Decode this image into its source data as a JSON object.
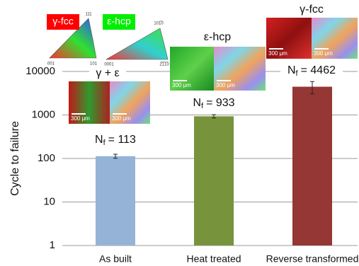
{
  "chart_data": {
    "type": "bar",
    "y_label": "Cycle to failure",
    "categories": [
      "As built",
      "Heat treated",
      "Reverse transformed"
    ],
    "values": [
      113,
      933,
      4462
    ],
    "errors": [
      12,
      80,
      1400
    ],
    "colors": [
      "#95b3d7",
      "#77933c",
      "#953735"
    ],
    "value_label_symbol": "N",
    "value_label_subscript": "f",
    "value_labels": [
      "= 113",
      "= 933",
      "= 4462"
    ],
    "yscale": "log",
    "ylim": [
      1,
      10000
    ],
    "yticks": [
      1,
      10,
      100,
      1000,
      10000
    ],
    "grid": true,
    "ipf_legends": [
      {
        "label": "γ-fcc",
        "color": "#ff0000",
        "corners": [
          "111",
          "001",
          "101"
        ]
      },
      {
        "label": "ε-hcp",
        "color": "#00ee00",
        "corners": [
          "101̅0",
          "0001",
          "2̅1̅1̅0"
        ]
      }
    ],
    "insets": [
      {
        "phase": "γ + ε",
        "scale_bars": [
          "300 μm",
          "300 μm"
        ]
      },
      {
        "phase": "ε-hcp",
        "scale_bars": [
          "300 μm",
          "300 μm"
        ]
      },
      {
        "phase": "γ-fcc",
        "scale_bars": [
          "300 μm",
          "300 μm"
        ]
      }
    ]
  }
}
